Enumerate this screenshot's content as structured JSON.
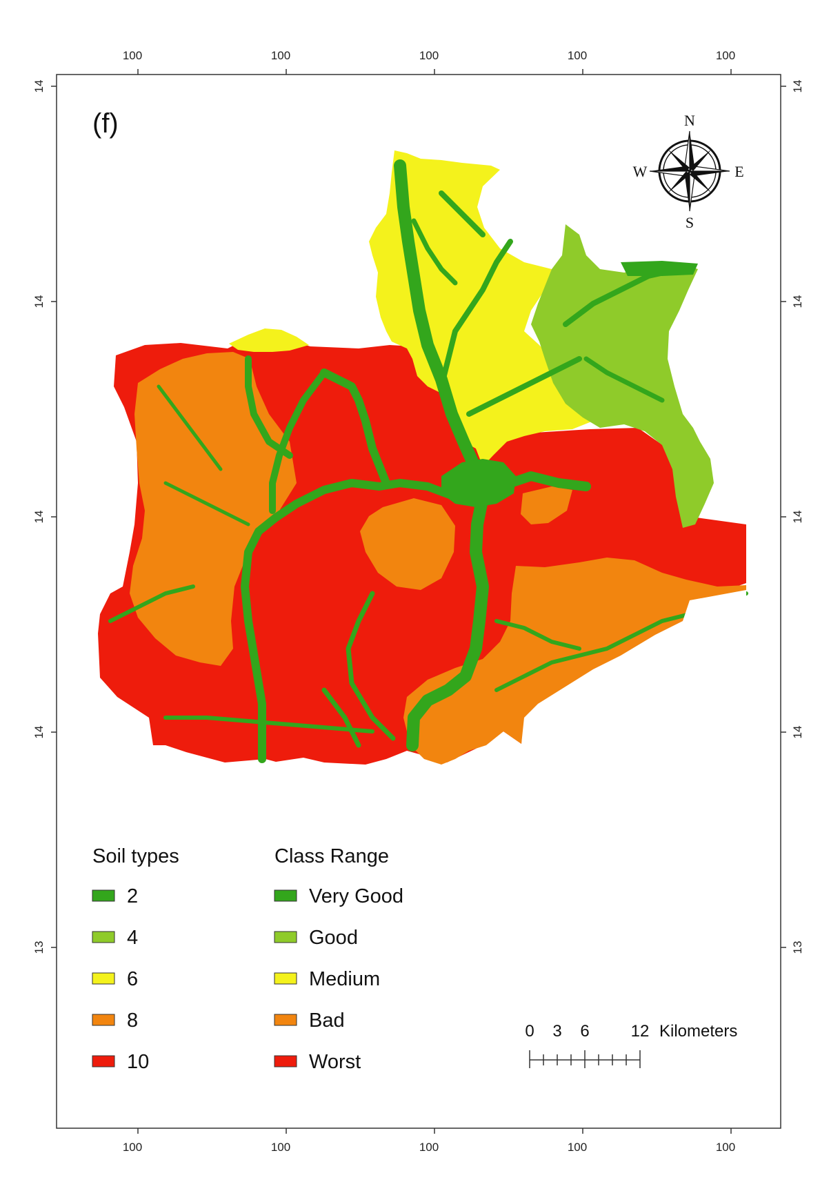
{
  "panel_label": "(f)",
  "axes": {
    "top_ticks": [
      "100",
      "100",
      "100",
      "100",
      "100"
    ],
    "bottom_ticks": [
      "100",
      "100",
      "100",
      "100",
      "100"
    ],
    "left_ticks": [
      "14",
      "14",
      "14",
      "14",
      "13"
    ],
    "right_ticks": [
      "14",
      "14",
      "14",
      "14",
      "13"
    ]
  },
  "compass": {
    "n": "N",
    "s": "S",
    "e": "E",
    "w": "W"
  },
  "legend": {
    "soil_title": "Soil types",
    "class_title": "Class Range",
    "items": [
      {
        "soil": "2",
        "class": "Very Good",
        "color": "#33a61c"
      },
      {
        "soil": "4",
        "class": "Good",
        "color": "#8fcb2a"
      },
      {
        "soil": "6",
        "class": "Medium",
        "color": "#f4f21c"
      },
      {
        "soil": "8",
        "class": "Bad",
        "color": "#f2850f"
      },
      {
        "soil": "10",
        "class": "Worst",
        "color": "#ee1c0c"
      }
    ]
  },
  "scale_bar": {
    "labels": [
      "0",
      "3",
      "6",
      "12"
    ],
    "unit": "Kilometers"
  }
}
